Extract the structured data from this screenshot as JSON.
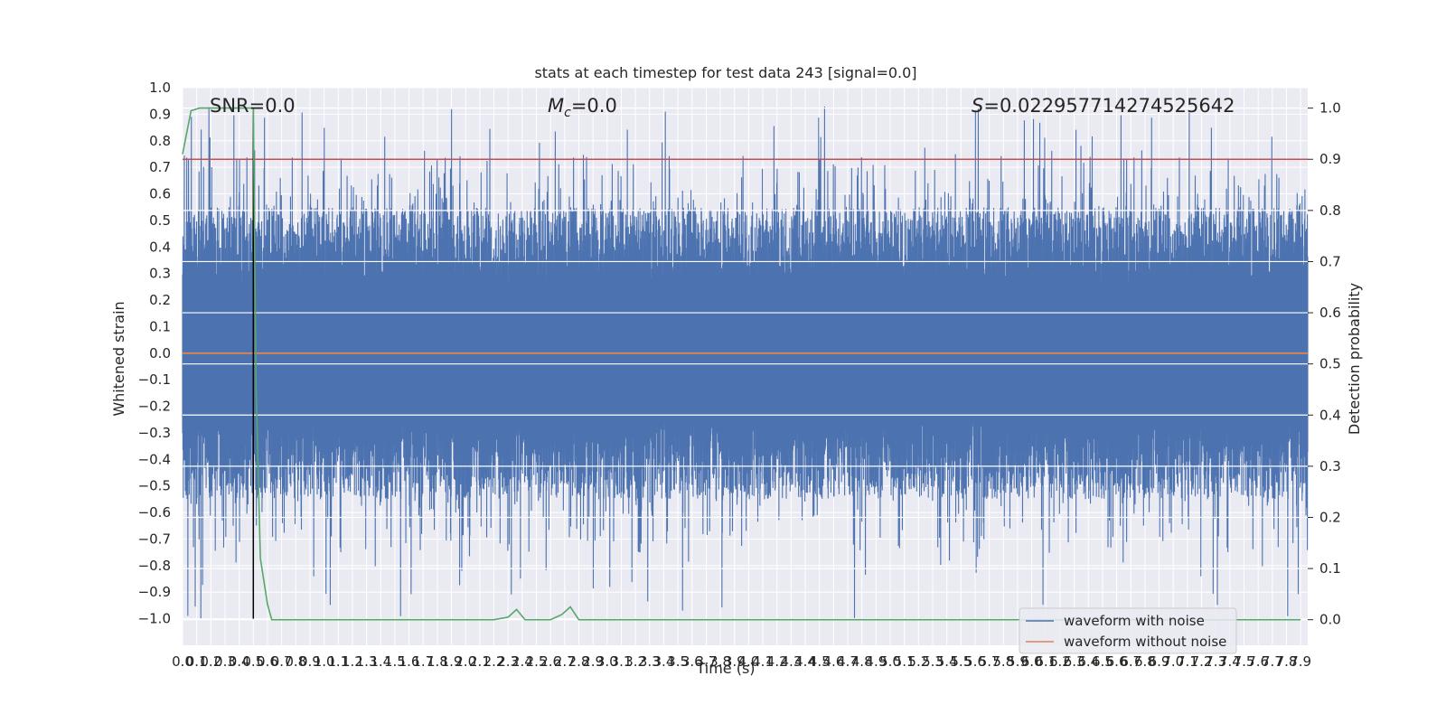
{
  "chart_data": {
    "type": "line",
    "title": "stats at each timestep for test data 243 [signal=0.0]",
    "xlabel": "Time (s)",
    "ylabel": "Whitened strain",
    "y2label": "Detection probability",
    "xlim": [
      0.0,
      7.95
    ],
    "ylim": [
      -1.1,
      1.0
    ],
    "y2lim": [
      -0.05,
      1.04
    ],
    "x_ticks": [
      "0.0",
      "0.1",
      "0.2",
      "0.3",
      "0.4",
      "0.5",
      "0.6",
      "0.7",
      "0.8",
      "0.9",
      "1.0",
      "1.1",
      "1.2",
      "1.3",
      "1.4",
      "1.5",
      "1.6",
      "1.7",
      "1.8",
      "1.9",
      "2.0",
      "2.1",
      "2.2",
      "2.3",
      "2.4",
      "2.5",
      "2.6",
      "2.7",
      "2.8",
      "2.9",
      "3.0",
      "3.1",
      "3.2",
      "3.3",
      "3.4",
      "3.5",
      "3.6",
      "3.7",
      "3.8",
      "3.9",
      "4.0",
      "4.1",
      "4.2",
      "4.3",
      "4.4",
      "4.5",
      "4.6",
      "4.7",
      "4.8",
      "4.9",
      "5.0",
      "5.1",
      "5.2",
      "5.3",
      "5.4",
      "5.5",
      "5.6",
      "5.7",
      "5.8",
      "5.9",
      "6.0",
      "6.1",
      "6.2",
      "6.3",
      "6.4",
      "6.5",
      "6.6",
      "6.7",
      "6.8",
      "6.9",
      "7.0",
      "7.1",
      "7.2",
      "7.3",
      "7.4",
      "7.5",
      "7.6",
      "7.7",
      "7.8",
      "7.9"
    ],
    "y_ticks": [
      "1.0",
      "0.9",
      "0.8",
      "0.7",
      "0.6",
      "0.5",
      "0.4",
      "0.3",
      "0.2",
      "0.1",
      "0.0",
      "−0.1",
      "−0.2",
      "−0.3",
      "−0.4",
      "−0.5",
      "−0.6",
      "−0.7",
      "−0.8",
      "−0.9",
      "−1.0"
    ],
    "y2_ticks": [
      "1.0",
      "0.9",
      "0.8",
      "0.7",
      "0.6",
      "0.5",
      "0.4",
      "0.3",
      "0.2",
      "0.1",
      "0.0"
    ],
    "annotations": {
      "snr": "SNR=0.0",
      "mc_symbol": "M",
      "mc_sub": "c",
      "mc_value": "=0.0",
      "s_symbol": "S",
      "s_value": "=0.022957714274525642"
    },
    "threshold": 0.9,
    "marker_time": 0.5,
    "series": [
      {
        "name": "waveform with noise",
        "color": "#4c72b0",
        "kind": "noise",
        "approx_range": [
          -1.0,
          0.93
        ]
      },
      {
        "name": "waveform without noise",
        "color": "#dd8452",
        "kind": "flat",
        "value": 0.0
      }
    ],
    "detection_probability": {
      "color": "#55a868",
      "x": [
        0.0,
        0.06,
        0.12,
        0.2,
        0.3,
        0.4,
        0.5,
        0.52,
        0.55,
        0.6,
        0.63,
        0.7,
        1.0,
        2.0,
        2.2,
        2.3,
        2.36,
        2.42,
        2.5,
        2.6,
        2.68,
        2.74,
        2.8,
        3.0,
        4.0,
        5.0,
        6.0,
        7.0,
        7.9
      ],
      "y": [
        0.91,
        0.995,
        1.0,
        1.0,
        1.0,
        1.0,
        1.0,
        0.45,
        0.12,
        0.03,
        0.0,
        0.0,
        0.0,
        0.0,
        0.0,
        0.005,
        0.02,
        0.0,
        0.0,
        0.0,
        0.01,
        0.025,
        0.0,
        0.0,
        0.0,
        0.0,
        0.0,
        0.0,
        0.0
      ]
    },
    "colors": {
      "plot_bg": "#eaeaf2",
      "grid": "#ffffff",
      "threshold": "#c44e52",
      "marker": "#000000"
    },
    "legend_position": "lower right",
    "grid": true
  }
}
